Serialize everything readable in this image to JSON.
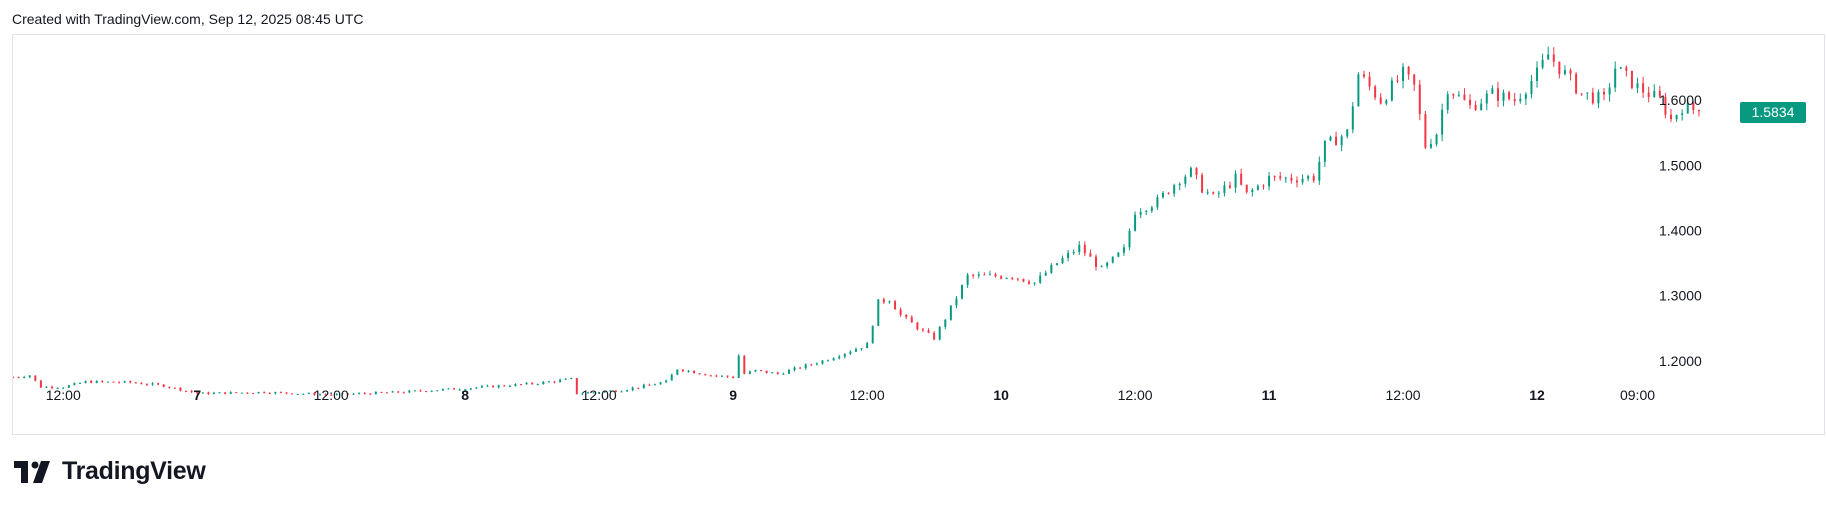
{
  "header": {
    "text": "Created with TradingView.com, Sep 12, 2025 08:45 UTC"
  },
  "brand": {
    "name": "TradingView",
    "icon": "tradingview-logo-icon"
  },
  "colors": {
    "up": "#089981",
    "down": "#f23645",
    "label_bg": "#089981"
  },
  "chart_data": {
    "type": "candlestick",
    "title": "",
    "xlabel": "",
    "ylabel": "",
    "ylim": [
      1.14,
      1.7
    ],
    "grid": false,
    "y_ticks": [
      "1.2000",
      "1.3000",
      "1.4000",
      "1.5000",
      "1.6000"
    ],
    "y_tick_values": [
      1.2,
      1.3,
      1.4,
      1.5,
      1.6
    ],
    "x_ticks": [
      {
        "label": "12:00",
        "bold": false
      },
      {
        "label": "7",
        "bold": true
      },
      {
        "label": "12:00",
        "bold": false
      },
      {
        "label": "8",
        "bold": true
      },
      {
        "label": "12:00",
        "bold": false
      },
      {
        "label": "9",
        "bold": true
      },
      {
        "label": "12:00",
        "bold": false
      },
      {
        "label": "10",
        "bold": true
      },
      {
        "label": "12:00",
        "bold": false
      },
      {
        "label": "11",
        "bold": true
      },
      {
        "label": "12:00",
        "bold": false
      },
      {
        "label": "12",
        "bold": true
      },
      {
        "label": "09:00",
        "bold": false
      }
    ],
    "x_tick_times": [
      12,
      24,
      36,
      48,
      60,
      72,
      84,
      96,
      108,
      120,
      132,
      144,
      153
    ],
    "time_range": [
      7.5,
      162
    ],
    "last_price": "1.5834",
    "last_value": 1.5834,
    "price_path": [
      [
        7.5,
        1.175
      ],
      [
        9,
        1.178
      ],
      [
        10,
        1.16
      ],
      [
        12,
        1.16
      ],
      [
        14,
        1.168
      ],
      [
        18,
        1.167
      ],
      [
        21,
        1.162
      ],
      [
        24,
        1.15
      ],
      [
        30,
        1.152
      ],
      [
        36,
        1.148
      ],
      [
        42,
        1.152
      ],
      [
        48,
        1.158
      ],
      [
        54,
        1.165
      ],
      [
        57.5,
        1.172
      ],
      [
        58,
        1.15
      ],
      [
        62,
        1.155
      ],
      [
        66,
        1.168
      ],
      [
        67,
        1.188
      ],
      [
        70,
        1.178
      ],
      [
        72,
        1.175
      ],
      [
        72.2,
        1.225
      ],
      [
        73,
        1.18
      ],
      [
        74,
        1.185
      ],
      [
        76,
        1.18
      ],
      [
        80,
        1.2
      ],
      [
        84,
        1.225
      ],
      [
        85,
        1.29
      ],
      [
        86,
        1.295
      ],
      [
        87,
        1.27
      ],
      [
        89,
        1.245
      ],
      [
        90,
        1.235
      ],
      [
        91,
        1.265
      ],
      [
        93,
        1.33
      ],
      [
        97,
        1.33
      ],
      [
        99,
        1.32
      ],
      [
        101,
        1.35
      ],
      [
        103,
        1.375
      ],
      [
        105,
        1.34
      ],
      [
        107,
        1.37
      ],
      [
        108,
        1.43
      ],
      [
        110,
        1.445
      ],
      [
        112,
        1.48
      ],
      [
        113,
        1.49
      ],
      [
        114,
        1.465
      ],
      [
        115,
        1.45
      ],
      [
        117,
        1.48
      ],
      [
        118,
        1.455
      ],
      [
        120,
        1.48
      ],
      [
        122,
        1.48
      ],
      [
        124,
        1.482
      ],
      [
        125,
        1.53
      ],
      [
        127,
        1.55
      ],
      [
        128,
        1.64
      ],
      [
        129,
        1.62
      ],
      [
        130,
        1.6
      ],
      [
        132,
        1.64
      ],
      [
        133,
        1.62
      ],
      [
        134,
        1.53
      ],
      [
        135,
        1.55
      ],
      [
        136,
        1.62
      ],
      [
        138,
        1.59
      ],
      [
        140,
        1.61
      ],
      [
        142,
        1.6
      ],
      [
        144,
        1.64
      ],
      [
        145,
        1.67
      ],
      [
        146,
        1.65
      ],
      [
        148,
        1.61
      ],
      [
        150,
        1.6
      ],
      [
        151,
        1.65
      ],
      [
        153,
        1.62
      ],
      [
        155,
        1.6
      ],
      [
        156,
        1.57
      ],
      [
        157,
        1.59
      ],
      [
        158.5,
        1.5834
      ]
    ]
  }
}
